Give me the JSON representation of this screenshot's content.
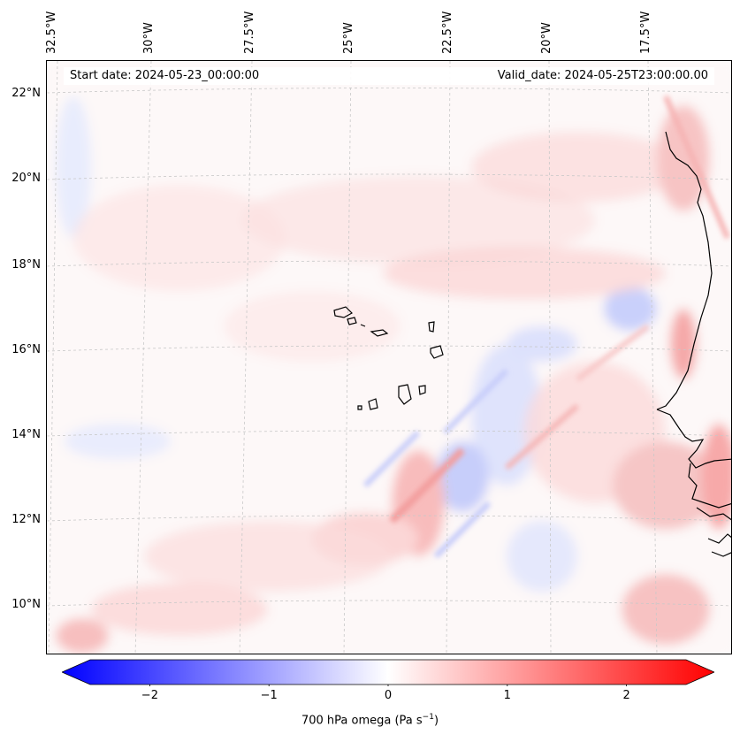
{
  "header": {
    "start_date": "Start date: 2024-05-23_00:00:00",
    "valid_date": "Valid_date: 2024-05-25T23:00:00.00"
  },
  "axes": {
    "lon_labels": [
      "32.5°W",
      "30°W",
      "27.5°W",
      "25°W",
      "22.5°W",
      "20°W",
      "17.5°W"
    ],
    "lat_labels": [
      "22°N",
      "20°N",
      "18°N",
      "16°N",
      "14°N",
      "12°N",
      "10°N"
    ]
  },
  "colorbar": {
    "label_text": "700 hPa omega (Pa s",
    "label_sup": "−1",
    "label_close": ")",
    "ticks": [
      "−2",
      "−1",
      "0",
      "1",
      "2"
    ],
    "min_color": "#0000ff",
    "mid_color": "#ffffff",
    "max_color": "#ff0000"
  },
  "map": {
    "grid_color": "#c8c8c8",
    "coast_color": "#000000"
  }
}
